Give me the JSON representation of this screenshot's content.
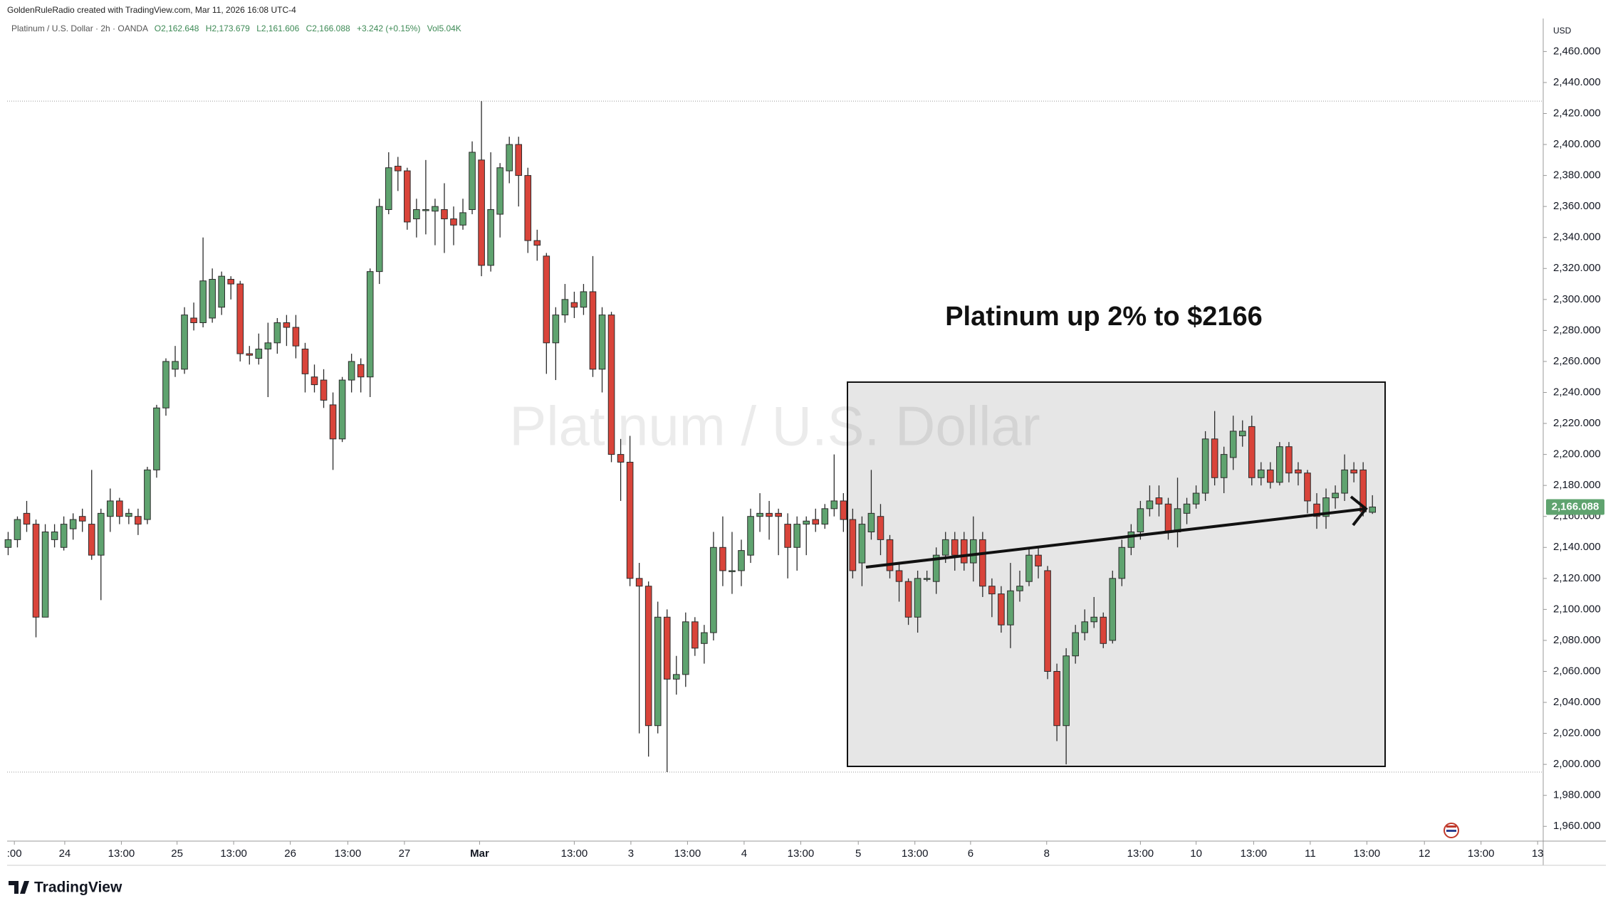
{
  "header": {
    "credit": "GoldenRuleRadio created with TradingView.com, Mar 11, 2026 16:08 UTC-4",
    "brand": "TradingView"
  },
  "chart_data": {
    "type": "candlestick",
    "legend": {
      "symbol": "Platinum / U.S. Dollar · 2h · OANDA",
      "items": [
        "O2,162.648",
        "H2,173.679",
        "L2,161.606",
        "C2,166.088",
        "+3.242 (+0.15%)",
        "Vol5.04K"
      ]
    },
    "watermark": "Platinum / U.S. Dollar",
    "annotation": "Platinum up 2% to $2166",
    "currency": "USD",
    "last_label": "2,166.088",
    "up_color": "#5fa36f",
    "down_color": "#d9443a",
    "wick_color": "#2b2b2b",
    "grid": false,
    "open": [
      2140,
      2145,
      2162,
      2155,
      2095,
      2145,
      2140,
      2152,
      2160,
      2155,
      2135,
      2160,
      2170,
      2160,
      2160,
      2158,
      2190,
      2230,
      2255,
      2255,
      2288,
      2285,
      2288,
      2295,
      2313,
      2310,
      2265,
      2262,
      2268,
      2272,
      2285,
      2282,
      2268,
      2250,
      2248,
      2232,
      2210,
      2248,
      2258,
      2250,
      2318,
      2358,
      2386,
      2383,
      2352,
      2358,
      2357,
      2358,
      2352,
      2348,
      2358,
      2390,
      2322,
      2355,
      2383,
      2400,
      2380,
      2338,
      2328,
      2272,
      2290,
      2298,
      2295,
      2305,
      2255,
      2290,
      2200,
      2195,
      2120,
      2115,
      2025,
      2095,
      2055,
      2058,
      2092,
      2078,
      2085,
      2140,
      2125,
      2125,
      2135,
      2160,
      2162,
      2162,
      2155,
      2140,
      2155,
      2158,
      2155,
      2165,
      2170,
      2158,
      2130,
      2150,
      2160,
      2145,
      2125,
      2118,
      2095,
      2120,
      2118,
      2135,
      2145,
      2145,
      2130,
      2145,
      2115,
      2110,
      2090,
      2112,
      2118,
      2135,
      2125,
      2060,
      2025,
      2070,
      2085,
      2092,
      2095,
      2080,
      2120,
      2140,
      2150,
      2165,
      2172,
      2168,
      2150,
      2162,
      2168,
      2175,
      2210,
      2185,
      2198,
      2212,
      2218,
      2185,
      2190,
      2182,
      2205,
      2190,
      2188,
      2168,
      2160,
      2172,
      2175,
      2190,
      2190,
      2162.648
    ],
    "high": [
      2150,
      2160,
      2170,
      2158,
      2155,
      2155,
      2160,
      2162,
      2165,
      2190,
      2165,
      2178,
      2172,
      2165,
      2165,
      2192,
      2232,
      2262,
      2270,
      2295,
      2298,
      2340,
      2320,
      2318,
      2315,
      2312,
      2270,
      2278,
      2285,
      2288,
      2290,
      2290,
      2272,
      2258,
      2255,
      2240,
      2250,
      2265,
      2262,
      2320,
      2365,
      2395,
      2392,
      2385,
      2365,
      2390,
      2365,
      2375,
      2360,
      2365,
      2402,
      2428,
      2395,
      2388,
      2405,
      2405,
      2385,
      2345,
      2330,
      2295,
      2310,
      2305,
      2310,
      2328,
      2295,
      2292,
      2210,
      2212,
      2130,
      2118,
      2105,
      2100,
      2070,
      2098,
      2095,
      2090,
      2150,
      2160,
      2150,
      2145,
      2165,
      2175,
      2170,
      2165,
      2162,
      2160,
      2160,
      2165,
      2168,
      2200,
      2175,
      2165,
      2160,
      2190,
      2168,
      2148,
      2130,
      2120,
      2125,
      2125,
      2140,
      2150,
      2150,
      2150,
      2160,
      2150,
      2120,
      2115,
      2130,
      2125,
      2140,
      2140,
      2128,
      2065,
      2075,
      2090,
      2100,
      2108,
      2098,
      2125,
      2145,
      2155,
      2170,
      2180,
      2180,
      2172,
      2185,
      2172,
      2180,
      2215,
      2228,
      2205,
      2225,
      2222,
      2225,
      2195,
      2195,
      2208,
      2208,
      2195,
      2190,
      2175,
      2178,
      2180,
      2200,
      2195,
      2195,
      2173.679
    ],
    "low": [
      2135,
      2140,
      2150,
      2082,
      2095,
      2140,
      2138,
      2145,
      2150,
      2132,
      2106,
      2150,
      2155,
      2155,
      2148,
      2155,
      2185,
      2225,
      2250,
      2252,
      2280,
      2282,
      2285,
      2290,
      2300,
      2260,
      2258,
      2258,
      2237,
      2265,
      2270,
      2262,
      2240,
      2240,
      2230,
      2190,
      2208,
      2240,
      2240,
      2237,
      2310,
      2355,
      2370,
      2345,
      2340,
      2342,
      2335,
      2330,
      2335,
      2345,
      2355,
      2315,
      2318,
      2340,
      2375,
      2360,
      2330,
      2325,
      2252,
      2248,
      2285,
      2288,
      2290,
      2250,
      2240,
      2195,
      2170,
      2115,
      2020,
      2005,
      2020,
      1995,
      2045,
      2050,
      2070,
      2065,
      2080,
      2115,
      2110,
      2115,
      2130,
      2150,
      2145,
      2135,
      2120,
      2125,
      2135,
      2150,
      2152,
      2160,
      2150,
      2120,
      2115,
      2145,
      2135,
      2120,
      2105,
      2090,
      2085,
      2118,
      2110,
      2130,
      2125,
      2125,
      2118,
      2108,
      2095,
      2085,
      2075,
      2105,
      2115,
      2120,
      2055,
      2015,
      2000,
      2065,
      2080,
      2088,
      2075,
      2078,
      2115,
      2135,
      2145,
      2160,
      2160,
      2145,
      2140,
      2155,
      2165,
      2170,
      2180,
      2175,
      2190,
      2205,
      2180,
      2180,
      2178,
      2180,
      2182,
      2180,
      2162,
      2152,
      2152,
      2165,
      2170,
      2182,
      2160,
      2161.606
    ],
    "close": [
      2145,
      2158,
      2155,
      2095,
      2150,
      2150,
      2155,
      2158,
      2157,
      2135,
      2162,
      2170,
      2160,
      2162,
      2155,
      2190,
      2230,
      2260,
      2260,
      2290,
      2285,
      2312,
      2313,
      2315,
      2310,
      2265,
      2264,
      2268,
      2272,
      2285,
      2282,
      2270,
      2252,
      2245,
      2235,
      2210,
      2248,
      2260,
      2250,
      2318,
      2360,
      2385,
      2383,
      2350,
      2358,
      2358,
      2360,
      2352,
      2348,
      2356,
      2395,
      2322,
      2358,
      2385,
      2400,
      2380,
      2338,
      2335,
      2272,
      2290,
      2300,
      2295,
      2305,
      2255,
      2290,
      2200,
      2195,
      2120,
      2115,
      2025,
      2095,
      2055,
      2058,
      2092,
      2075,
      2085,
      2140,
      2125,
      2125,
      2138,
      2160,
      2162,
      2160,
      2160,
      2140,
      2155,
      2157,
      2155,
      2165,
      2170,
      2158,
      2125,
      2155,
      2162,
      2145,
      2125,
      2118,
      2095,
      2120,
      2120,
      2135,
      2145,
      2135,
      2130,
      2145,
      2115,
      2110,
      2090,
      2112,
      2115,
      2135,
      2128,
      2060,
      2025,
      2070,
      2085,
      2092,
      2095,
      2078,
      2120,
      2140,
      2150,
      2165,
      2170,
      2168,
      2150,
      2165,
      2168,
      2175,
      2210,
      2185,
      2200,
      2215,
      2215,
      2185,
      2190,
      2182,
      2205,
      2188,
      2188,
      2170,
      2160,
      2172,
      2175,
      2190,
      2188,
      2163,
      2166.088
    ],
    "xlim": [
      -0.11,
      165.4
    ],
    "xticks": [
      {
        "value": 0.67,
        "label": ":00"
      },
      {
        "value": 6.1,
        "label": "24"
      },
      {
        "value": 12.2,
        "label": "13:00"
      },
      {
        "value": 18.2,
        "label": "25"
      },
      {
        "value": 24.3,
        "label": "13:00"
      },
      {
        "value": 30.4,
        "label": "26"
      },
      {
        "value": 36.6,
        "label": "13:00"
      },
      {
        "value": 42.7,
        "label": "27"
      },
      {
        "value": 50.8,
        "label": "Mar"
      },
      {
        "value": 61,
        "label": "13:00"
      },
      {
        "value": 67.1,
        "label": "3"
      },
      {
        "value": 73.2,
        "label": "13:00"
      },
      {
        "value": 79.3,
        "label": "4"
      },
      {
        "value": 85.4,
        "label": "13:00"
      },
      {
        "value": 91.6,
        "label": "5"
      },
      {
        "value": 97.7,
        "label": "13:00"
      },
      {
        "value": 103.7,
        "label": "6"
      },
      {
        "value": 111.9,
        "label": "8"
      },
      {
        "value": 122,
        "label": "13:00"
      },
      {
        "value": 128,
        "label": "10"
      },
      {
        "value": 134.2,
        "label": "13:00"
      },
      {
        "value": 140.3,
        "label": "11"
      },
      {
        "value": 146.4,
        "label": "13:00"
      },
      {
        "value": 152.6,
        "label": "12"
      },
      {
        "value": 158.7,
        "label": "13:00"
      },
      {
        "value": 164.8,
        "label": "13"
      }
    ],
    "ylim": [
      1951.4,
      2481.3
    ],
    "yticks": [
      {
        "value": 1960,
        "label": "1,960.000"
      },
      {
        "value": 1980,
        "label": "1,980.000"
      },
      {
        "value": 2000,
        "label": "2,000.000"
      },
      {
        "value": 2020,
        "label": "2,020.000"
      },
      {
        "value": 2040,
        "label": "2,040.000"
      },
      {
        "value": 2060,
        "label": "2,060.000"
      },
      {
        "value": 2080,
        "label": "2,080.000"
      },
      {
        "value": 2100,
        "label": "2,100.000"
      },
      {
        "value": 2120,
        "label": "2,120.000"
      },
      {
        "value": 2140,
        "label": "2,140.000"
      },
      {
        "value": 2160,
        "label": "2,160.000"
      },
      {
        "value": 2180,
        "label": "2,180.000"
      },
      {
        "value": 2200,
        "label": "2,200.000"
      },
      {
        "value": 2220,
        "label": "2,220.000"
      },
      {
        "value": 2240,
        "label": "2,240.000"
      },
      {
        "value": 2260,
        "label": "2,260.000"
      },
      {
        "value": 2280,
        "label": "2,280.000"
      },
      {
        "value": 2300,
        "label": "2,300.000"
      },
      {
        "value": 2320,
        "label": "2,320.000"
      },
      {
        "value": 2340,
        "label": "2,340.000"
      },
      {
        "value": 2360,
        "label": "2,360.000"
      },
      {
        "value": 2380,
        "label": "2,380.000"
      },
      {
        "value": 2400,
        "label": "2,400.000"
      },
      {
        "value": 2420,
        "label": "2,420.000"
      },
      {
        "value": 2440,
        "label": "2,440.000"
      },
      {
        "value": 2460,
        "label": "2,460.000"
      }
    ]
  }
}
